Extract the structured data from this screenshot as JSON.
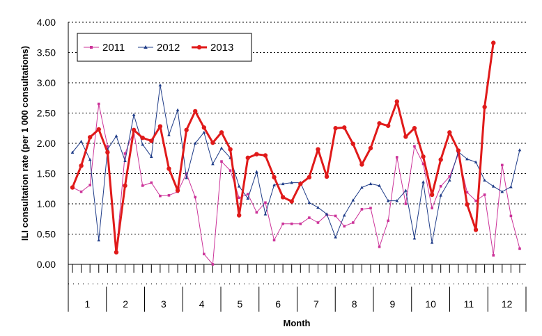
{
  "chart_data": {
    "type": "line",
    "title": "",
    "xlabel": "Month",
    "ylabel": "ILI consultation rate (per 1 000 consultations)",
    "ylim": [
      0,
      4
    ],
    "y_ticks": [
      "0.00",
      "0.50",
      "1.00",
      "1.50",
      "2.00",
      "2.50",
      "3.00",
      "3.50",
      "4.00"
    ],
    "grid": "horizontal dotted",
    "legend_position": "top-left",
    "months": [
      "1",
      "2",
      "3",
      "4",
      "5",
      "6",
      "7",
      "8",
      "9",
      "10",
      "11",
      "12"
    ],
    "x_unit": "week",
    "series": [
      {
        "name": "2011",
        "color": "#cc3399",
        "style": "thin",
        "values": [
          1.27,
          1.2,
          1.31,
          2.65,
          1.95,
          0.19,
          1.83,
          2.2,
          1.3,
          1.35,
          1.13,
          1.14,
          1.2,
          1.5,
          1.11,
          0.17,
          0.0,
          1.7,
          1.55,
          1.1,
          1.16,
          0.86,
          1.02,
          0.4,
          0.67,
          0.67,
          0.67,
          0.77,
          0.69,
          0.82,
          0.8,
          0.63,
          0.69,
          0.91,
          0.93,
          0.29,
          0.72,
          1.77,
          1.0,
          1.95,
          1.66,
          0.93,
          1.29,
          1.45,
          1.82,
          1.19,
          1.05,
          1.15,
          0.15,
          1.64,
          0.8,
          0.26
        ]
      },
      {
        "name": "2012",
        "color": "#1f3c88",
        "style": "thin",
        "values": [
          1.85,
          2.03,
          1.73,
          0.4,
          1.9,
          2.12,
          1.71,
          2.47,
          1.98,
          1.78,
          2.96,
          2.14,
          2.55,
          1.43,
          2.0,
          2.18,
          1.66,
          1.92,
          1.76,
          1.29,
          1.09,
          1.53,
          0.83,
          1.31,
          1.33,
          1.35,
          1.35,
          1.02,
          0.94,
          0.83,
          0.45,
          0.81,
          1.06,
          1.27,
          1.33,
          1.3,
          1.05,
          1.05,
          1.22,
          0.43,
          1.36,
          0.36,
          1.14,
          1.39,
          1.86,
          1.74,
          1.69,
          1.39,
          1.29,
          1.2,
          1.28,
          1.89
        ]
      },
      {
        "name": "2013",
        "color": "#e01a1a",
        "style": "thick",
        "values": [
          1.27,
          1.63,
          2.1,
          2.23,
          1.85,
          0.2,
          1.3,
          2.22,
          2.09,
          2.04,
          2.28,
          1.58,
          1.22,
          2.22,
          2.53,
          2.26,
          2.01,
          2.18,
          1.9,
          0.81,
          1.76,
          1.82,
          1.8,
          1.44,
          1.11,
          1.04,
          1.33,
          1.44,
          1.9,
          1.45,
          2.25,
          2.26,
          1.99,
          1.65,
          1.92,
          2.33,
          2.29,
          2.69,
          2.11,
          2.25,
          1.78,
          1.15,
          1.73,
          2.18,
          1.88,
          0.99,
          0.57,
          2.6,
          3.66
        ]
      }
    ]
  }
}
